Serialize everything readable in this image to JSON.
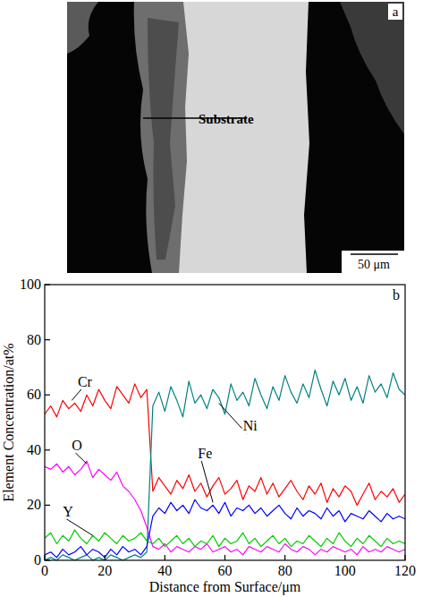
{
  "image": {
    "panel_label": "a",
    "label": "Substrate",
    "scale_bar": "50 μm"
  },
  "chart_data": {
    "type": "line",
    "panel_label": "b",
    "x_label": "Distance from Surface/μm",
    "y_label": "Element Concentration/at%",
    "xlim": [
      0,
      120
    ],
    "xticks": [
      0,
      20,
      40,
      60,
      80,
      100,
      120
    ],
    "ylim": [
      0,
      100
    ],
    "yticks": [
      0,
      20,
      40,
      60,
      80,
      100
    ],
    "x": [
      0,
      2,
      4,
      6,
      8,
      10,
      12,
      14,
      16,
      18,
      20,
      22,
      24,
      26,
      28,
      30,
      32,
      34,
      36,
      38,
      40,
      42,
      44,
      46,
      48,
      50,
      52,
      54,
      56,
      58,
      60,
      62,
      64,
      66,
      68,
      70,
      72,
      74,
      76,
      78,
      80,
      82,
      84,
      86,
      88,
      90,
      92,
      94,
      96,
      98,
      100,
      102,
      104,
      106,
      108,
      110,
      112,
      114,
      116,
      118,
      120
    ],
    "series": [
      {
        "name": "Cr",
        "color": "#ff0000",
        "values": [
          53,
          56,
          52,
          58,
          55,
          57,
          54,
          60,
          56,
          62,
          58,
          55,
          63,
          60,
          57,
          64,
          59,
          62,
          25,
          30,
          27,
          24,
          29,
          26,
          31,
          25,
          28,
          23,
          27,
          30,
          24,
          26,
          29,
          22,
          27,
          25,
          30,
          24,
          28,
          23,
          26,
          29,
          25,
          22,
          27,
          24,
          28,
          21,
          26,
          23,
          27,
          25,
          20,
          24,
          28,
          22,
          25,
          23,
          26,
          21,
          24
        ]
      },
      {
        "name": "Ni",
        "color": "#008080",
        "values": [
          0,
          1,
          0,
          2,
          1,
          0,
          1,
          2,
          0,
          1,
          0,
          2,
          1,
          0,
          1,
          2,
          1,
          3,
          56,
          61,
          54,
          63,
          58,
          52,
          65,
          57,
          60,
          55,
          62,
          59,
          53,
          64,
          58,
          61,
          56,
          66,
          60,
          55,
          63,
          58,
          67,
          61,
          57,
          64,
          59,
          69,
          62,
          56,
          65,
          60,
          66,
          58,
          63,
          57,
          67,
          61,
          64,
          59,
          68,
          62,
          60
        ]
      },
      {
        "name": "O",
        "color": "#ff00ff",
        "values": [
          34,
          33,
          35,
          32,
          34,
          31,
          33,
          36,
          30,
          33,
          31,
          29,
          32,
          27,
          25,
          22,
          18,
          12,
          5,
          4,
          6,
          3,
          5,
          4,
          3,
          5,
          4,
          6,
          3,
          4,
          5,
          3,
          4,
          2,
          5,
          4,
          3,
          5,
          4,
          3,
          6,
          4,
          3,
          5,
          4,
          2,
          4,
          3,
          5,
          4,
          3,
          4,
          2,
          5,
          3,
          4,
          3,
          5,
          4,
          3,
          4
        ]
      },
      {
        "name": "Fe",
        "color": "#0000ff",
        "values": [
          2,
          3,
          1,
          4,
          2,
          3,
          5,
          2,
          4,
          3,
          1,
          4,
          2,
          5,
          3,
          4,
          2,
          5,
          16,
          19,
          17,
          21,
          18,
          20,
          17,
          22,
          19,
          18,
          20,
          17,
          21,
          16,
          19,
          18,
          20,
          17,
          19,
          16,
          18,
          20,
          17,
          15,
          19,
          16,
          18,
          17,
          15,
          19,
          16,
          18,
          14,
          17,
          16,
          15,
          18,
          16,
          14,
          17,
          15,
          16,
          15
        ]
      },
      {
        "name": "Y",
        "color": "#00cc00",
        "values": [
          8,
          10,
          6,
          9,
          7,
          11,
          8,
          6,
          9,
          7,
          10,
          8,
          6,
          9,
          7,
          8,
          10,
          7,
          6,
          8,
          5,
          7,
          9,
          6,
          8,
          5,
          7,
          6,
          9,
          5,
          8,
          6,
          7,
          10,
          6,
          8,
          5,
          7,
          9,
          6,
          8,
          5,
          7,
          6,
          9,
          7,
          5,
          8,
          6,
          10,
          7,
          5,
          8,
          6,
          9,
          7,
          5,
          8,
          6,
          7,
          6
        ]
      }
    ]
  }
}
